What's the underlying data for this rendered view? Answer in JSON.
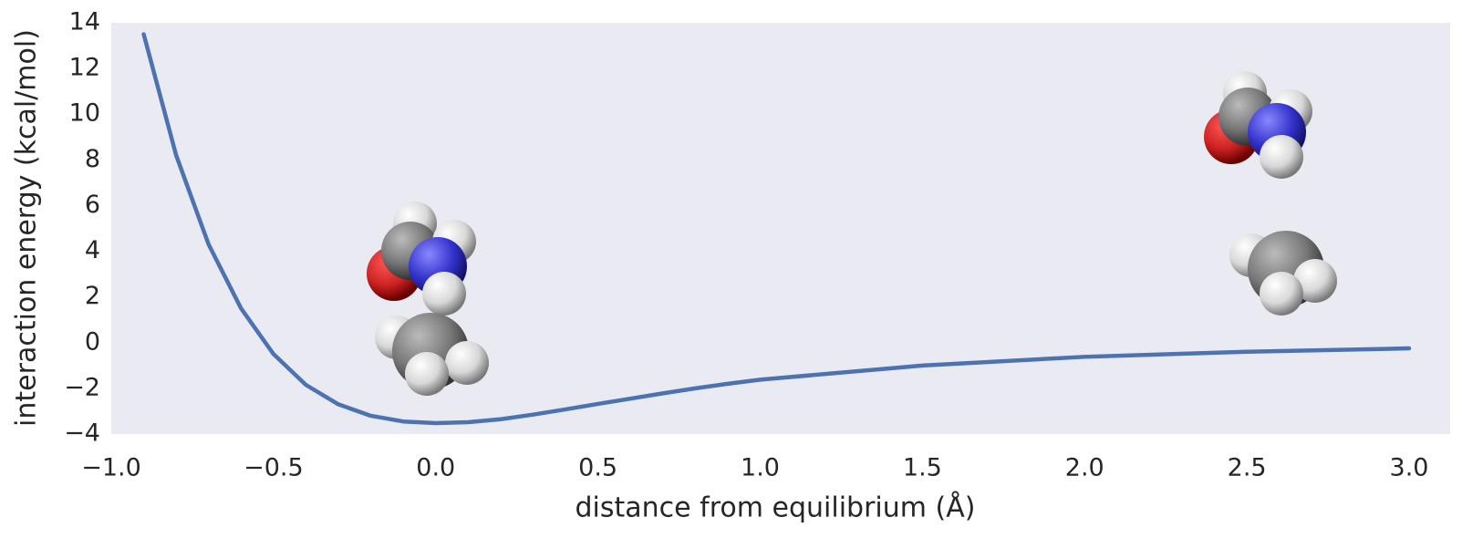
{
  "chart_data": {
    "type": "line",
    "xlabel": "distance from equilibrium (Å)",
    "ylabel": "interaction energy (kcal/mol)",
    "x": [
      -0.9,
      -0.8,
      -0.7,
      -0.6,
      -0.5,
      -0.4,
      -0.3,
      -0.2,
      -0.1,
      0.0,
      0.1,
      0.2,
      0.3,
      0.4,
      0.5,
      0.6,
      0.7,
      0.8,
      0.9,
      1.0,
      1.5,
      2.0,
      2.5,
      3.0
    ],
    "series": [
      {
        "color": "#4c72b0",
        "values": [
          13.5,
          8.2,
          4.3,
          1.5,
          -0.5,
          -1.85,
          -2.7,
          -3.2,
          -3.45,
          -3.52,
          -3.48,
          -3.35,
          -3.15,
          -2.92,
          -2.68,
          -2.45,
          -2.22,
          -2.0,
          -1.8,
          -1.62,
          -1.0,
          -0.62,
          -0.4,
          -0.25
        ]
      }
    ],
    "xlim": [
      -1.0,
      3.0
    ],
    "ylim": [
      -4,
      14
    ],
    "xticks": [
      {
        "value": -1.0,
        "label": "−1.0"
      },
      {
        "value": -0.5,
        "label": "−0.5"
      },
      {
        "value": 0.0,
        "label": "0.0"
      },
      0.5,
      {
        "value": 1.0,
        "label": "1.0"
      },
      1.5,
      {
        "value": 2.0,
        "label": "2.0"
      },
      2.5,
      {
        "value": 3.0,
        "label": "3.0"
      }
    ],
    "yticks": [
      {
        "value": -4,
        "label": "−4"
      },
      {
        "value": -2,
        "label": "−2"
      },
      0,
      2,
      4,
      6,
      8,
      10,
      12,
      14
    ],
    "grid": false,
    "background": "#eaeaf2"
  }
}
